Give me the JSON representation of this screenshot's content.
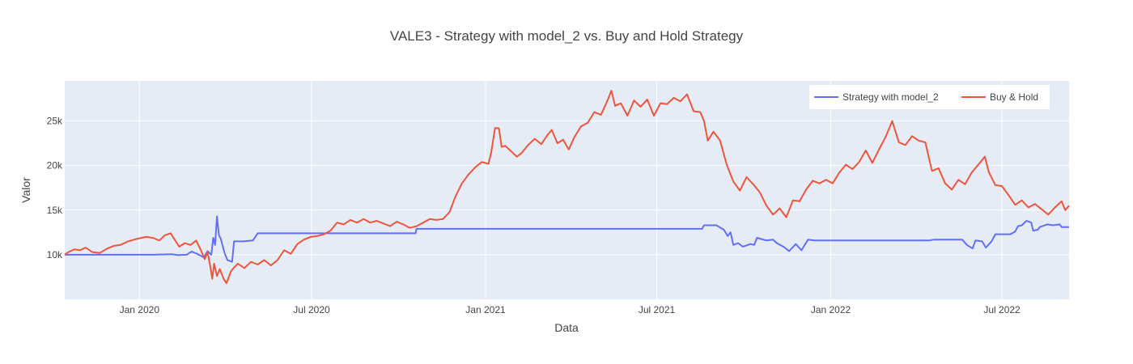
{
  "chart_data": {
    "type": "line",
    "title": "VALE3 - Strategy with model_2 vs. Buy and Hold Strategy",
    "xlabel": "Data",
    "ylabel": "Valor",
    "x_range": [
      "2019-10-14",
      "2022-09-10"
    ],
    "ylim": [
      5000,
      29500
    ],
    "x_ticks": [
      {
        "date": "2020-01-01",
        "label": "Jan 2020"
      },
      {
        "date": "2020-07-01",
        "label": "Jul 2020"
      },
      {
        "date": "2021-01-01",
        "label": "Jan 2021"
      },
      {
        "date": "2021-07-01",
        "label": "Jul 2021"
      },
      {
        "date": "2022-01-01",
        "label": "Jan 2022"
      },
      {
        "date": "2022-07-01",
        "label": "Jul 2022"
      }
    ],
    "y_ticks": [
      {
        "value": 10000,
        "label": "10k"
      },
      {
        "value": 15000,
        "label": "15k"
      },
      {
        "value": 20000,
        "label": "20k"
      },
      {
        "value": 25000,
        "label": "25k"
      }
    ],
    "grid": true,
    "legend_position": "top-right",
    "series": [
      {
        "name": "Strategy with model_2",
        "color": "#636efa",
        "points": [
          [
            "2019-10-14",
            10000
          ],
          [
            "2020-01-15",
            10000
          ],
          [
            "2020-02-05",
            10050
          ],
          [
            "2020-02-10",
            9950
          ],
          [
            "2020-02-20",
            10000
          ],
          [
            "2020-02-25",
            10350
          ],
          [
            "2020-03-02",
            10100
          ],
          [
            "2020-03-09",
            9700
          ],
          [
            "2020-03-13",
            10400
          ],
          [
            "2020-03-17",
            10000
          ],
          [
            "2020-03-19",
            11900
          ],
          [
            "2020-03-21",
            11100
          ],
          [
            "2020-03-23",
            14300
          ],
          [
            "2020-03-25",
            12200
          ],
          [
            "2020-03-27",
            11800
          ],
          [
            "2020-03-31",
            10200
          ],
          [
            "2020-04-03",
            9400
          ],
          [
            "2020-04-08",
            9200
          ],
          [
            "2020-04-10",
            11500
          ],
          [
            "2020-04-20",
            11500
          ],
          [
            "2020-04-30",
            11600
          ],
          [
            "2020-05-05",
            12400
          ],
          [
            "2020-07-15",
            12400
          ],
          [
            "2020-10-19",
            12400
          ],
          [
            "2020-10-20",
            12900
          ],
          [
            "2021-08-18",
            12900
          ],
          [
            "2021-08-20",
            13300
          ],
          [
            "2021-09-02",
            13300
          ],
          [
            "2021-09-10",
            12800
          ],
          [
            "2021-09-14",
            12100
          ],
          [
            "2021-09-17",
            12500
          ],
          [
            "2021-09-20",
            11100
          ],
          [
            "2021-09-25",
            11300
          ],
          [
            "2021-09-30",
            10900
          ],
          [
            "2021-10-08",
            11200
          ],
          [
            "2021-10-12",
            11100
          ],
          [
            "2021-10-15",
            11900
          ],
          [
            "2021-10-25",
            11600
          ],
          [
            "2021-11-01",
            11700
          ],
          [
            "2021-11-05",
            11300
          ],
          [
            "2021-11-12",
            10900
          ],
          [
            "2021-11-18",
            10400
          ],
          [
            "2021-11-25",
            11200
          ],
          [
            "2021-12-01",
            10500
          ],
          [
            "2021-12-08",
            11700
          ],
          [
            "2021-12-15",
            11600
          ],
          [
            "2022-04-15",
            11600
          ],
          [
            "2022-04-20",
            11700
          ],
          [
            "2022-05-20",
            11700
          ],
          [
            "2022-05-25",
            11100
          ],
          [
            "2022-05-31",
            10700
          ],
          [
            "2022-06-03",
            11600
          ],
          [
            "2022-06-10",
            11500
          ],
          [
            "2022-06-14",
            10800
          ],
          [
            "2022-06-20",
            11500
          ],
          [
            "2022-06-24",
            12300
          ],
          [
            "2022-07-10",
            12300
          ],
          [
            "2022-07-15",
            12600
          ],
          [
            "2022-07-18",
            13200
          ],
          [
            "2022-07-22",
            13300
          ],
          [
            "2022-07-27",
            13800
          ],
          [
            "2022-08-01",
            13600
          ],
          [
            "2022-08-03",
            12700
          ],
          [
            "2022-08-08",
            12800
          ],
          [
            "2022-08-10",
            13100
          ],
          [
            "2022-08-18",
            13400
          ],
          [
            "2022-08-24",
            13300
          ],
          [
            "2022-08-31",
            13400
          ],
          [
            "2022-09-02",
            13100
          ],
          [
            "2022-09-10",
            13100
          ]
        ]
      },
      {
        "name": "Buy & Hold",
        "color": "#ef553b",
        "points": [
          [
            "2019-10-14",
            10000
          ],
          [
            "2019-10-18",
            10300
          ],
          [
            "2019-10-24",
            10600
          ],
          [
            "2019-10-30",
            10500
          ],
          [
            "2019-11-05",
            10800
          ],
          [
            "2019-11-12",
            10300
          ],
          [
            "2019-11-20",
            10200
          ],
          [
            "2019-11-28",
            10700
          ],
          [
            "2019-12-05",
            11000
          ],
          [
            "2019-12-12",
            11100
          ],
          [
            "2019-12-20",
            11500
          ],
          [
            "2019-12-30",
            11800
          ],
          [
            "2020-01-08",
            12000
          ],
          [
            "2020-01-15",
            11900
          ],
          [
            "2020-01-22",
            11600
          ],
          [
            "2020-01-28",
            12200
          ],
          [
            "2020-02-03",
            12400
          ],
          [
            "2020-02-06",
            11900
          ],
          [
            "2020-02-12",
            10900
          ],
          [
            "2020-02-18",
            11300
          ],
          [
            "2020-02-24",
            11100
          ],
          [
            "2020-03-01",
            11600
          ],
          [
            "2020-03-06",
            10500
          ],
          [
            "2020-03-10",
            9500
          ],
          [
            "2020-03-13",
            10300
          ],
          [
            "2020-03-16",
            8600
          ],
          [
            "2020-03-18",
            7300
          ],
          [
            "2020-03-20",
            9000
          ],
          [
            "2020-03-23",
            7600
          ],
          [
            "2020-03-26",
            8400
          ],
          [
            "2020-03-30",
            7300
          ],
          [
            "2020-04-02",
            6800
          ],
          [
            "2020-04-07",
            8200
          ],
          [
            "2020-04-14",
            9000
          ],
          [
            "2020-04-21",
            8500
          ],
          [
            "2020-04-28",
            9200
          ],
          [
            "2020-05-05",
            8900
          ],
          [
            "2020-05-12",
            9400
          ],
          [
            "2020-05-19",
            8800
          ],
          [
            "2020-05-26",
            9400
          ],
          [
            "2020-06-02",
            10500
          ],
          [
            "2020-06-09",
            10100
          ],
          [
            "2020-06-16",
            11200
          ],
          [
            "2020-06-23",
            11700
          ],
          [
            "2020-06-30",
            12000
          ],
          [
            "2020-07-07",
            12100
          ],
          [
            "2020-07-14",
            12300
          ],
          [
            "2020-07-21",
            12700
          ],
          [
            "2020-07-28",
            13600
          ],
          [
            "2020-08-04",
            13400
          ],
          [
            "2020-08-11",
            13900
          ],
          [
            "2020-08-18",
            13600
          ],
          [
            "2020-08-25",
            14000
          ],
          [
            "2020-09-01",
            13600
          ],
          [
            "2020-09-08",
            13800
          ],
          [
            "2020-09-15",
            13500
          ],
          [
            "2020-09-22",
            13200
          ],
          [
            "2020-09-29",
            13700
          ],
          [
            "2020-10-06",
            13400
          ],
          [
            "2020-10-13",
            13000
          ],
          [
            "2020-10-20",
            13200
          ],
          [
            "2020-10-27",
            13600
          ],
          [
            "2020-11-03",
            14000
          ],
          [
            "2020-11-10",
            13900
          ],
          [
            "2020-11-17",
            14000
          ],
          [
            "2020-11-24",
            14800
          ],
          [
            "2020-11-30",
            16500
          ],
          [
            "2020-12-07",
            18000
          ],
          [
            "2020-12-14",
            19000
          ],
          [
            "2020-12-21",
            19800
          ],
          [
            "2020-12-28",
            20400
          ],
          [
            "2021-01-04",
            20200
          ],
          [
            "2021-01-07",
            21500
          ],
          [
            "2021-01-11",
            24200
          ],
          [
            "2021-01-15",
            24200
          ],
          [
            "2021-01-18",
            22100
          ],
          [
            "2021-01-22",
            22200
          ],
          [
            "2021-01-28",
            21600
          ],
          [
            "2021-02-03",
            21000
          ],
          [
            "2021-02-08",
            21400
          ],
          [
            "2021-02-15",
            22300
          ],
          [
            "2021-02-22",
            23000
          ],
          [
            "2021-03-01",
            22400
          ],
          [
            "2021-03-08",
            23500
          ],
          [
            "2021-03-12",
            24000
          ],
          [
            "2021-03-18",
            22500
          ],
          [
            "2021-03-24",
            22900
          ],
          [
            "2021-03-30",
            21800
          ],
          [
            "2021-04-05",
            23200
          ],
          [
            "2021-04-12",
            24400
          ],
          [
            "2021-04-19",
            24800
          ],
          [
            "2021-04-26",
            26000
          ],
          [
            "2021-05-03",
            25700
          ],
          [
            "2021-05-10",
            27300
          ],
          [
            "2021-05-14",
            28400
          ],
          [
            "2021-05-18",
            26700
          ],
          [
            "2021-05-24",
            27000
          ],
          [
            "2021-05-31",
            25600
          ],
          [
            "2021-06-07",
            27300
          ],
          [
            "2021-06-14",
            26600
          ],
          [
            "2021-06-21",
            27400
          ],
          [
            "2021-06-28",
            25600
          ],
          [
            "2021-07-05",
            27000
          ],
          [
            "2021-07-12",
            26900
          ],
          [
            "2021-07-19",
            27600
          ],
          [
            "2021-07-26",
            27200
          ],
          [
            "2021-08-02",
            28000
          ],
          [
            "2021-08-09",
            26100
          ],
          [
            "2021-08-16",
            26000
          ],
          [
            "2021-08-20",
            25000
          ],
          [
            "2021-08-24",
            22800
          ],
          [
            "2021-08-30",
            23800
          ],
          [
            "2021-09-06",
            22800
          ],
          [
            "2021-09-13",
            20100
          ],
          [
            "2021-09-20",
            18200
          ],
          [
            "2021-09-27",
            17200
          ],
          [
            "2021-10-04",
            18700
          ],
          [
            "2021-10-11",
            17900
          ],
          [
            "2021-10-18",
            17000
          ],
          [
            "2021-10-25",
            15500
          ],
          [
            "2021-11-01",
            14500
          ],
          [
            "2021-11-08",
            15200
          ],
          [
            "2021-11-15",
            14200
          ],
          [
            "2021-11-22",
            16100
          ],
          [
            "2021-11-29",
            16000
          ],
          [
            "2021-12-06",
            17300
          ],
          [
            "2021-12-13",
            18300
          ],
          [
            "2021-12-20",
            18000
          ],
          [
            "2021-12-27",
            18400
          ],
          [
            "2022-01-03",
            18000
          ],
          [
            "2022-01-10",
            19200
          ],
          [
            "2022-01-17",
            20100
          ],
          [
            "2022-01-24",
            19600
          ],
          [
            "2022-01-31",
            20400
          ],
          [
            "2022-02-07",
            21700
          ],
          [
            "2022-02-14",
            20300
          ],
          [
            "2022-02-21",
            21800
          ],
          [
            "2022-02-28",
            23200
          ],
          [
            "2022-03-07",
            25000
          ],
          [
            "2022-03-14",
            22600
          ],
          [
            "2022-03-21",
            22300
          ],
          [
            "2022-03-28",
            23300
          ],
          [
            "2022-04-04",
            22800
          ],
          [
            "2022-04-11",
            22600
          ],
          [
            "2022-04-18",
            19400
          ],
          [
            "2022-04-25",
            19700
          ],
          [
            "2022-05-02",
            18000
          ],
          [
            "2022-05-09",
            17300
          ],
          [
            "2022-05-16",
            18400
          ],
          [
            "2022-05-23",
            17900
          ],
          [
            "2022-05-30",
            19200
          ],
          [
            "2022-06-06",
            20100
          ],
          [
            "2022-06-13",
            21000
          ],
          [
            "2022-06-17",
            19300
          ],
          [
            "2022-06-24",
            17800
          ],
          [
            "2022-07-01",
            17700
          ],
          [
            "2022-07-08",
            16700
          ],
          [
            "2022-07-15",
            15600
          ],
          [
            "2022-07-22",
            16100
          ],
          [
            "2022-07-29",
            15300
          ],
          [
            "2022-08-05",
            15700
          ],
          [
            "2022-08-12",
            15100
          ],
          [
            "2022-08-19",
            14500
          ],
          [
            "2022-08-26",
            15300
          ],
          [
            "2022-09-02",
            16000
          ],
          [
            "2022-09-06",
            15000
          ],
          [
            "2022-09-10",
            15500
          ]
        ]
      }
    ]
  }
}
